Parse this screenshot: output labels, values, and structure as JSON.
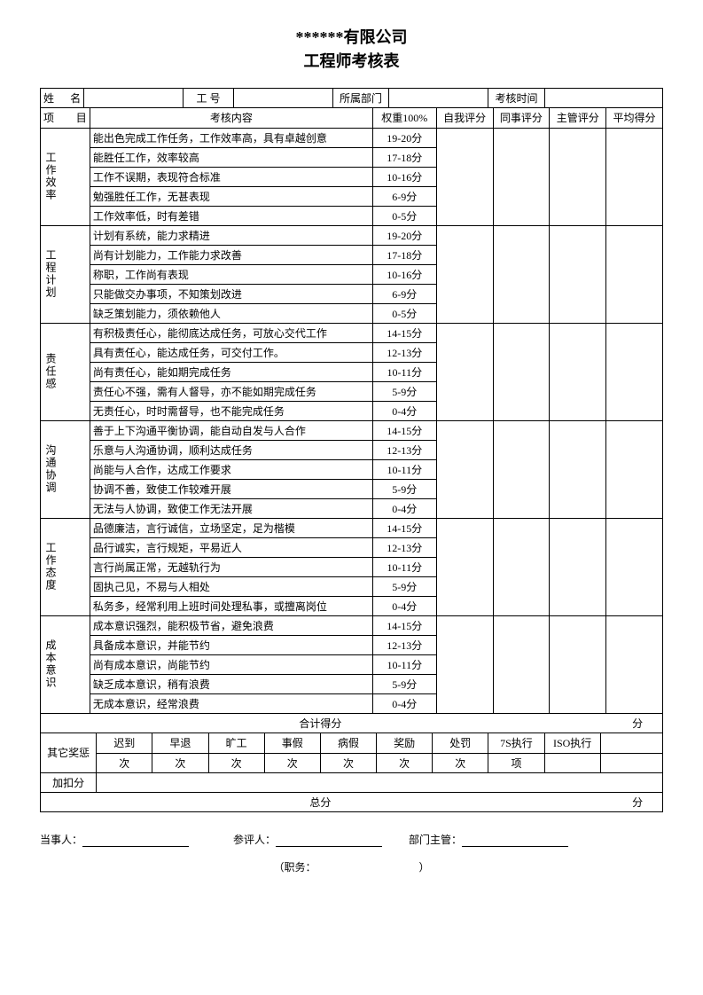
{
  "title_line1": "******有限公司",
  "title_line2": "工程师考核表",
  "header": {
    "name_label": "姓    名",
    "empno_label": "工  号",
    "dept_label": "所属部门",
    "assess_time_label": "考核时间"
  },
  "cols": {
    "project": "项    目",
    "content": "考核内容",
    "weight": "权重100%",
    "self": "自我评分",
    "peer": "同事评分",
    "mgr": "主管评分",
    "avg": "平均得分"
  },
  "sections": [
    {
      "name": "工作效率",
      "rows": [
        {
          "text": "能出色完成工作任务，工作效率高，具有卓越创意",
          "score": "19-20分"
        },
        {
          "text": "能胜任工作，效率较高",
          "score": "17-18分"
        },
        {
          "text": "工作不误期，表现符合标准",
          "score": "10-16分"
        },
        {
          "text": "勉强胜任工作，无甚表现",
          "score": "6-9分"
        },
        {
          "text": "工作效率低，时有差错",
          "score": "0-5分"
        }
      ]
    },
    {
      "name": "工程计划",
      "rows": [
        {
          "text": "计划有系统，能力求精进",
          "score": "19-20分"
        },
        {
          "text": "尚有计划能力，工作能力求改善",
          "score": "17-18分"
        },
        {
          "text": "称职，工作尚有表现",
          "score": "10-16分"
        },
        {
          "text": "只能做交办事项，不知策划改进",
          "score": "6-9分"
        },
        {
          "text": "缺乏策划能力，须依赖他人",
          "score": "0-5分"
        }
      ]
    },
    {
      "name": "责任感",
      "rows": [
        {
          "text": "有积极责任心，能彻底达成任务，可放心交代工作",
          "score": "14-15分"
        },
        {
          "text": "具有责任心，能达成任务，可交付工作。",
          "score": "12-13分"
        },
        {
          "text": "尚有责任心，能如期完成任务",
          "score": "10-11分"
        },
        {
          "text": "责任心不强，需有人督导，亦不能如期完成任务",
          "score": "5-9分"
        },
        {
          "text": "无责任心，时时需督导，也不能完成任务",
          "score": "0-4分"
        }
      ]
    },
    {
      "name": "沟通协调",
      "rows": [
        {
          "text": "善于上下沟通平衡协调，能自动自发与人合作",
          "score": "14-15分"
        },
        {
          "text": "乐意与人沟通协调，顺利达成任务",
          "score": "12-13分"
        },
        {
          "text": "尚能与人合作，达成工作要求",
          "score": "10-11分"
        },
        {
          "text": "协调不善，致使工作较难开展",
          "score": "5-9分"
        },
        {
          "text": "无法与人协调，致使工作无法开展",
          "score": "0-4分"
        }
      ]
    },
    {
      "name": "工作态度",
      "rows": [
        {
          "text": "品德廉洁，言行诚信，立场坚定，足为楷模",
          "score": "14-15分"
        },
        {
          "text": "品行诚实，言行规矩，平易近人",
          "score": "12-13分"
        },
        {
          "text": "言行尚属正常，无越轨行为",
          "score": "10-11分"
        },
        {
          "text": "固执己见，不易与人相处",
          "score": "5-9分"
        },
        {
          "text": "私务多，经常利用上班时间处理私事，或擅离岗位",
          "score": "0-4分"
        }
      ]
    },
    {
      "name": "成本意识",
      "rows": [
        {
          "text": "成本意识强烈，能积极节省，避免浪费",
          "score": "14-15分"
        },
        {
          "text": "具备成本意识，并能节约",
          "score": "12-13分"
        },
        {
          "text": "尚有成本意识，尚能节约",
          "score": "10-11分"
        },
        {
          "text": "缺乏成本意识，稍有浪费",
          "score": "5-9分"
        },
        {
          "text": "无成本意识，经常浪费",
          "score": "0-4分"
        }
      ]
    }
  ],
  "subtotal_label": "合计得分",
  "subtotal_unit": "分",
  "other": {
    "label": "其它奖惩",
    "late": "迟到",
    "early": "早退",
    "absent": "旷工",
    "personal": "事假",
    "sick": "病假",
    "reward": "奖励",
    "penalty": "处罚",
    "seven_s": "7S执行",
    "iso": "ISO执行",
    "unit_times": "次",
    "unit_item": "项"
  },
  "adjust_label": "加扣分",
  "total_label": "总分",
  "total_unit": "分",
  "signatures": {
    "party": "当事人：",
    "reviewer": "参评人：",
    "dept_mgr": "部门主管：",
    "duty_open": "（职务：",
    "duty_close": "）"
  },
  "layout": {
    "col_widths_pct": [
      7,
      40,
      9,
      8,
      8,
      8,
      8
    ],
    "background_color": "#ffffff",
    "border_color": "#000000",
    "font_size_body": 12,
    "font_size_title": 18
  }
}
